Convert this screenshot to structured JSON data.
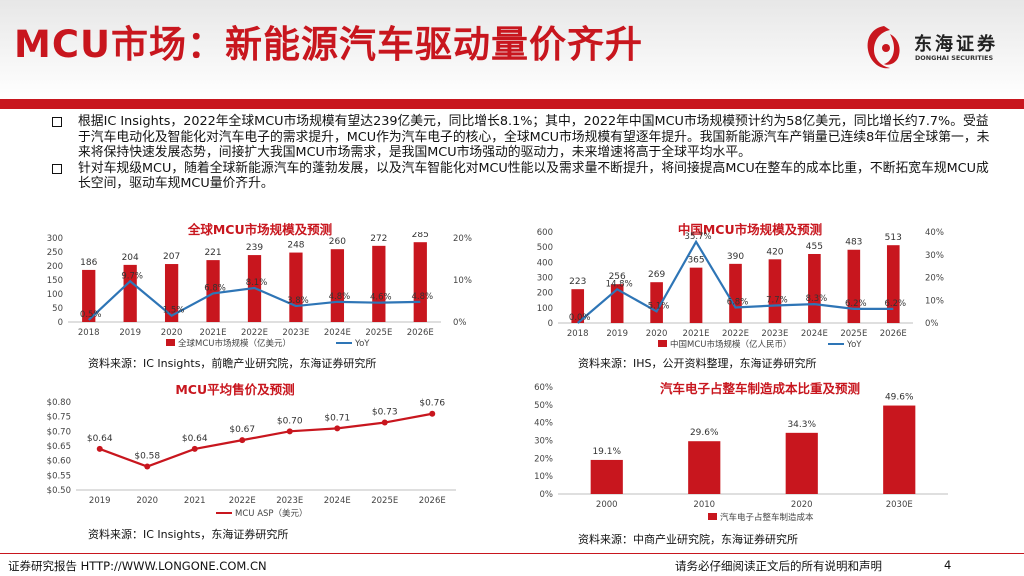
{
  "header": {
    "title": "MCU市场：新能源汽车驱动量价齐升",
    "logo_cn": "东海证券",
    "logo_en": "DONGHAI SECURITIES"
  },
  "bullets": [
    "根据IC Insights，2022年全球MCU市场规模有望达239亿美元，同比增长8.1%；其中，2022年中国MCU市场规模预计约为58亿美元，同比增长约7.7%。受益于汽车电动化及智能化对汽车电子的需求提升，MCU作为汽车电子的核心，全球MCU市场规模有望逐年提升。我国新能源汽车产销量已连续8年位居全球第一，未来将保持快速发展态势，间接扩大我国MCU市场需求，是我国MCU市场强动的驱动力，未来增速将高于全球平均水平。",
    "针对车规级MCU，随着全球新能源汽车的蓬勃发展，以及汽车智能化对MCU性能以及需求量不断提升，将间接提高MCU在整车的成本比重，不断拓宽车规MCU成长空间，驱动车规MCU量价齐升。"
  ],
  "colors": {
    "red": "#c8161e",
    "blue": "#2e75b6",
    "grid": "#d9d9d9"
  },
  "chart_data": [
    {
      "id": "global",
      "type": "bar",
      "title": "全球MCU市场规模及预测",
      "categories": [
        "2018",
        "2019",
        "2020",
        "2021E",
        "2022E",
        "2023E",
        "2024E",
        "2025E",
        "2026E"
      ],
      "series": [
        {
          "name": "全球MCU市场规模（亿美元）",
          "kind": "bar",
          "axis": "left",
          "values": [
            186,
            204,
            207,
            221,
            239,
            248,
            260,
            272,
            285
          ],
          "labels": [
            "186",
            "204",
            "207",
            "221",
            "239",
            "248",
            "260",
            "272",
            "285"
          ]
        },
        {
          "name": "YoY",
          "kind": "line",
          "axis": "right",
          "values": [
            0.5,
            9.7,
            1.5,
            6.8,
            8.1,
            3.8,
            4.8,
            4.6,
            4.8
          ],
          "labels": [
            "0.5%",
            "9.7%",
            "1.5%",
            "6.8%",
            "8.1%",
            "3.8%",
            "4.8%",
            "4.6%",
            "4.8%"
          ]
        }
      ],
      "ylim": [
        0,
        300
      ],
      "yticks": [
        "0",
        "50",
        "100",
        "150",
        "200",
        "250",
        "300"
      ],
      "y2lim": [
        0,
        20
      ],
      "y2ticks": [
        "0%",
        "10%",
        "20%"
      ],
      "source": "资料来源：IC Insights，前瞻产业研究院，东海证券研究所"
    },
    {
      "id": "china",
      "type": "bar",
      "title": "中国MCU市场规模及预测",
      "categories": [
        "2018",
        "2019",
        "2020",
        "2021E",
        "2022E",
        "2023E",
        "2024E",
        "2025E",
        "2026E"
      ],
      "series": [
        {
          "name": "中国MCU市场规模（亿人民币）",
          "kind": "bar",
          "axis": "left",
          "values": [
            223,
            256,
            269,
            365,
            390,
            420,
            455,
            483,
            513
          ],
          "labels": [
            "223",
            "256",
            "269",
            "365",
            "390",
            "420",
            "455",
            "483",
            "513"
          ]
        },
        {
          "name": "YoY",
          "kind": "line",
          "axis": "right",
          "values": [
            0.0,
            14.8,
            5.1,
            35.7,
            6.8,
            7.7,
            8.3,
            6.2,
            6.2
          ],
          "labels": [
            "0.0%",
            "14.8%",
            "5.1%",
            "35.7%",
            "6.8%",
            "7.7%",
            "8.3%",
            "6.2%",
            "6.2%"
          ]
        }
      ],
      "ylim": [
        0,
        600
      ],
      "yticks": [
        "0",
        "100",
        "200",
        "300",
        "400",
        "500",
        "600"
      ],
      "y2lim": [
        0,
        40
      ],
      "y2ticks": [
        "0%",
        "10%",
        "20%",
        "30%",
        "40%"
      ],
      "source": "资料来源：IHS，公开资料整理，东海证券研究所"
    },
    {
      "id": "asp",
      "type": "line",
      "title": "MCU平均售价及预测",
      "categories": [
        "2019",
        "2020",
        "2021",
        "2022E",
        "2023E",
        "2024E",
        "2025E",
        "2026E"
      ],
      "series": [
        {
          "name": "MCU ASP（美元）",
          "values": [
            0.64,
            0.58,
            0.64,
            0.67,
            0.7,
            0.71,
            0.73,
            0.76
          ],
          "labels": [
            "$0.64",
            "$0.58",
            "$0.64",
            "$0.67",
            "$0.70",
            "$0.71",
            "$0.73",
            "$0.76"
          ]
        }
      ],
      "ylim": [
        0.5,
        0.8
      ],
      "yticks": [
        "$0.50",
        "$0.55",
        "$0.60",
        "$0.65",
        "$0.70",
        "$0.75",
        "$0.80"
      ],
      "source": "资料来源：IC Insights，东海证券研究所"
    },
    {
      "id": "auto",
      "type": "bar",
      "title": "汽车电子占整车制造成本比重及预测",
      "categories": [
        "2000",
        "2010",
        "2020",
        "2030E"
      ],
      "series": [
        {
          "name": "汽车电子占整车制造成本",
          "values": [
            19.1,
            29.6,
            34.3,
            49.6
          ],
          "labels": [
            "19.1%",
            "29.6%",
            "34.3%",
            "49.6%"
          ]
        }
      ],
      "ylim": [
        0,
        60
      ],
      "yticks": [
        "0%",
        "10%",
        "20%",
        "30%",
        "40%",
        "50%",
        "60%"
      ],
      "source": "资料来源：中商产业研究院，东海证券研究所"
    }
  ],
  "footer": {
    "left": "证券研究报告 HTTP://WWW.LONGONE.COM.CN",
    "center": "请务必仔细阅读正文后的所有说明和声明",
    "page": "4"
  }
}
